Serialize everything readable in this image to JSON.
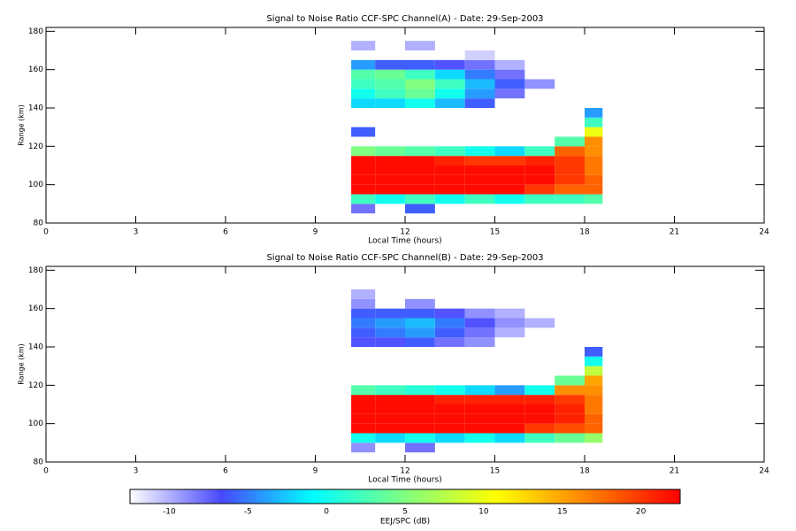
{
  "chart_data": [
    {
      "type": "heatmap",
      "title": "Signal to Noise Ratio CCF-SPC Channel(A) - Date: 29-Sep-2003",
      "xlabel": "Local Time (hours)",
      "ylabel": "Range (km)",
      "xlim": [
        0,
        24
      ],
      "xticks": [
        0,
        3,
        6,
        9,
        12,
        15,
        18,
        21,
        24
      ],
      "ylim": [
        80,
        182
      ],
      "yticks": [
        80,
        100,
        120,
        140,
        160,
        180
      ],
      "x_edges": [
        10.2,
        11,
        12,
        13,
        14,
        15,
        16,
        17,
        18,
        18.6
      ],
      "y_edges": [
        85,
        90,
        95,
        100,
        105,
        110,
        115,
        120,
        125,
        130,
        135,
        140,
        145,
        150,
        155,
        160,
        165,
        170,
        175
      ],
      "z": [
        [
          -8,
          null,
          -6,
          null,
          null,
          null,
          null,
          null,
          null
        ],
        [
          2,
          0,
          2,
          0,
          2,
          0,
          2,
          2,
          3
        ],
        [
          22,
          22,
          22,
          22,
          22,
          22,
          20,
          18,
          18
        ],
        [
          22,
          22,
          22,
          22,
          22,
          22,
          22,
          20,
          18
        ],
        [
          22,
          22,
          22,
          22,
          22,
          22,
          22,
          20,
          17
        ],
        [
          22,
          22,
          22,
          21,
          20,
          20,
          21,
          20,
          17
        ],
        [
          5,
          4,
          3,
          2,
          0,
          -2,
          2,
          18,
          16
        ],
        [
          null,
          null,
          null,
          null,
          null,
          null,
          null,
          3,
          16
        ],
        [
          -6,
          null,
          null,
          null,
          null,
          null,
          null,
          null,
          10
        ],
        [
          null,
          null,
          null,
          null,
          null,
          null,
          null,
          null,
          2
        ],
        [
          null,
          null,
          null,
          null,
          null,
          null,
          null,
          null,
          -4
        ],
        [
          -2,
          -2,
          0,
          -3,
          -6,
          null,
          null,
          null,
          null
        ],
        [
          0,
          2,
          4,
          0,
          -4,
          -8,
          null,
          null,
          null
        ],
        [
          2,
          3,
          5,
          2,
          -3,
          -6,
          -9,
          null,
          null
        ],
        [
          3,
          4,
          2,
          -2,
          -5,
          -8,
          null,
          null,
          null
        ],
        [
          -4,
          -6,
          -6,
          -7,
          -8,
          -10,
          null,
          null,
          null
        ],
        [
          null,
          null,
          null,
          null,
          -11,
          null,
          null,
          null,
          null
        ],
        [
          -10,
          null,
          -10,
          null,
          null,
          null,
          null,
          null,
          null
        ]
      ]
    },
    {
      "type": "heatmap",
      "title": "Signal to Noise Ratio CCF-SPC Channel(B) - Date: 29-Sep-2003",
      "xlabel": "Local Time (hours)",
      "ylabel": "Range (km)",
      "xlim": [
        0,
        24
      ],
      "xticks": [
        0,
        3,
        6,
        9,
        12,
        15,
        18,
        21,
        24
      ],
      "ylim": [
        80,
        182
      ],
      "yticks": [
        80,
        100,
        120,
        140,
        160,
        180
      ],
      "x_edges": [
        10.2,
        11,
        12,
        13,
        14,
        15,
        16,
        17,
        18,
        18.6
      ],
      "y_edges": [
        85,
        90,
        95,
        100,
        105,
        110,
        115,
        120,
        125,
        130,
        135,
        140,
        145,
        150,
        155,
        160,
        165,
        170,
        175
      ],
      "z": [
        [
          -9,
          null,
          -8,
          null,
          null,
          null,
          null,
          null,
          null
        ],
        [
          0,
          -2,
          0,
          -2,
          0,
          -2,
          2,
          4,
          6
        ],
        [
          22,
          22,
          22,
          22,
          22,
          22,
          20,
          19,
          18
        ],
        [
          22,
          22,
          22,
          22,
          22,
          22,
          22,
          21,
          18
        ],
        [
          22,
          22,
          22,
          22,
          22,
          22,
          22,
          21,
          17
        ],
        [
          22,
          22,
          22,
          21,
          21,
          21,
          21,
          20,
          17
        ],
        [
          3,
          2,
          1,
          0,
          -2,
          -4,
          0,
          16,
          16
        ],
        [
          null,
          null,
          null,
          null,
          null,
          null,
          null,
          4,
          15
        ],
        [
          null,
          null,
          null,
          null,
          null,
          null,
          null,
          null,
          8
        ],
        [
          null,
          null,
          null,
          null,
          null,
          null,
          null,
          null,
          0
        ],
        [
          null,
          null,
          null,
          null,
          null,
          null,
          null,
          null,
          -6
        ],
        [
          -7,
          -7,
          -6,
          -8,
          -9,
          null,
          null,
          null,
          null
        ],
        [
          -6,
          -5,
          -4,
          -6,
          -8,
          -10,
          null,
          null,
          null
        ],
        [
          -5,
          -4,
          -3,
          -5,
          -7,
          -9,
          -10,
          null,
          null
        ],
        [
          -6,
          -6,
          -6,
          -7,
          -9,
          -10,
          null,
          null,
          null
        ],
        [
          -9,
          null,
          -9,
          null,
          null,
          null,
          null,
          null,
          null
        ],
        [
          -10,
          null,
          null,
          null,
          null,
          null,
          null,
          null,
          null
        ],
        [
          null,
          null,
          null,
          null,
          null,
          null,
          null,
          null,
          null
        ]
      ]
    },
    {
      "type": "colorbar",
      "label": "EEJ/SPC (dB)",
      "xlim": [
        -12.5,
        22.5
      ],
      "xticks": [
        -10,
        -5,
        0,
        5,
        10,
        15,
        20
      ],
      "colorscale": [
        "#ffffff",
        "#4848ff",
        "#00ffff",
        "#80ff80",
        "#ffff00",
        "#ff8000",
        "#ff0000"
      ]
    }
  ]
}
